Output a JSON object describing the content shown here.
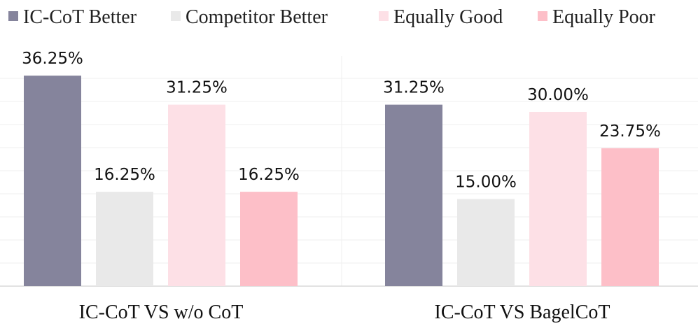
{
  "chart_data": {
    "type": "bar",
    "categories": [
      "IC-CoT VS w/o CoT",
      "IC-CoT VS BagelCoT"
    ],
    "series": [
      {
        "name": "IC-CoT Better",
        "values": [
          36.25,
          31.25
        ],
        "labels": [
          "36.25%",
          "31.25%"
        ],
        "color": "#85849c"
      },
      {
        "name": "Competitor Better",
        "values": [
          16.25,
          15.0
        ],
        "labels": [
          "16.25%",
          "15.00%"
        ],
        "color": "#e9e9e9"
      },
      {
        "name": "Equally Good",
        "values": [
          31.25,
          30.0
        ],
        "labels": [
          "31.25%",
          "30.00%"
        ],
        "color": "#fde0e6"
      },
      {
        "name": "Equally Poor",
        "values": [
          16.25,
          23.75
        ],
        "labels": [
          "16.25%",
          "23.75%"
        ],
        "color": "#fdbfc8"
      }
    ],
    "unit": "%",
    "ylim": [
      0,
      40
    ],
    "grid": true,
    "legend_position": "top"
  }
}
